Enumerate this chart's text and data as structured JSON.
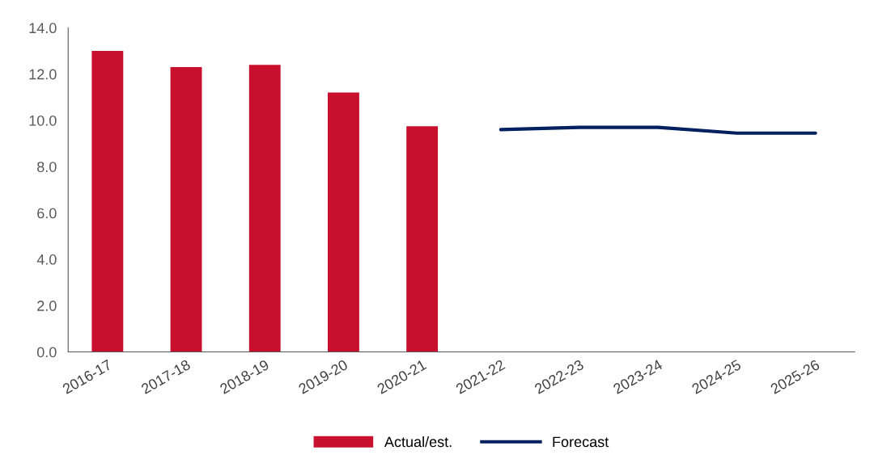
{
  "chart_data": {
    "type": "bar",
    "categories": [
      "2016-17",
      "2017-18",
      "2018-19",
      "2019-20",
      "2020-21",
      "2021-22",
      "2022-23",
      "2023-24",
      "2024-25",
      "2025-26"
    ],
    "series": [
      {
        "name": "Actual/est.",
        "color": "#c8102e",
        "values": [
          13.0,
          12.3,
          12.4,
          11.2,
          9.75,
          null,
          null,
          null,
          null,
          null
        ]
      },
      {
        "name": "Forecast",
        "type": "line",
        "color": "#002060",
        "values": [
          null,
          null,
          null,
          null,
          null,
          9.6,
          9.7,
          9.7,
          9.45,
          9.45
        ]
      }
    ],
    "ylim": [
      0,
      14
    ],
    "yticks": [
      {
        "value": 0,
        "label": "0.0"
      },
      {
        "value": 2,
        "label": "2.0"
      },
      {
        "value": 4,
        "label": "4.0"
      },
      {
        "value": 6,
        "label": "6.0"
      },
      {
        "value": 8,
        "label": "8.0"
      },
      {
        "value": 10,
        "label": "10.0"
      },
      {
        "value": 12,
        "label": "12.0"
      },
      {
        "value": 14,
        "label": "14.0"
      }
    ],
    "grid": false,
    "legend": "bottom",
    "marker": "none",
    "line_style": "solid"
  }
}
